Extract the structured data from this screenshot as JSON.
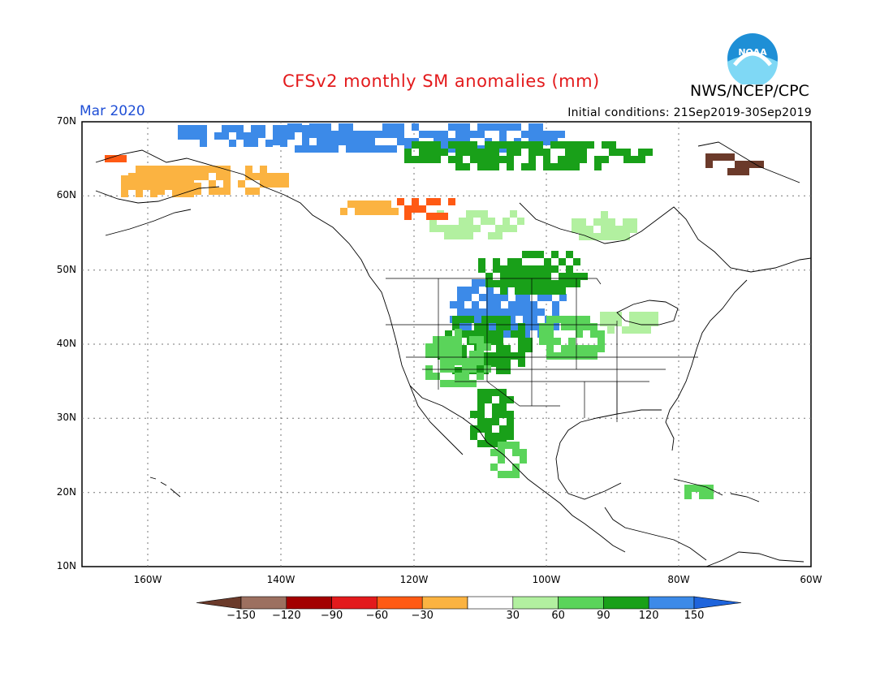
{
  "header": {
    "title": "CFSv2 monthly SM anomalies (mm)",
    "org": "NWS/NCEP/CPC",
    "month": "Mar 2020",
    "initial_conditions": "Initial conditions: 21Sep2019-30Sep2019",
    "logo_text": "NOAA"
  },
  "axes": {
    "lat_labels": [
      "70N",
      "60N",
      "50N",
      "40N",
      "30N",
      "20N",
      "10N"
    ],
    "lon_labels": [
      "160W",
      "140W",
      "120W",
      "100W",
      "80W",
      "60W"
    ]
  },
  "colorbar": {
    "labels": [
      "−150",
      "−120",
      "−90",
      "−60",
      "−30",
      "30",
      "60",
      "90",
      "120",
      "150"
    ],
    "colors": [
      "#6b3a2a",
      "#9c7060",
      "#a30000",
      "#e31a1c",
      "#ff5a14",
      "#fbb341",
      "#ffffff",
      "#b2f0a0",
      "#5ad45a",
      "#19a019",
      "#3c8ae8",
      "#1e64dc"
    ]
  },
  "colors": {
    "title": "#e31a1c",
    "month": "#1f4fd6",
    "wet_strong": "#3c8ae8",
    "wet_mid": "#19a019",
    "wet_low": "#5ad45a",
    "wet_weak": "#b2f0a0",
    "dry_weak": "#fbb341",
    "dry_mid": "#ff5a14",
    "dry_strong": "#a30000",
    "dry_extreme": "#6b3a2a"
  }
}
